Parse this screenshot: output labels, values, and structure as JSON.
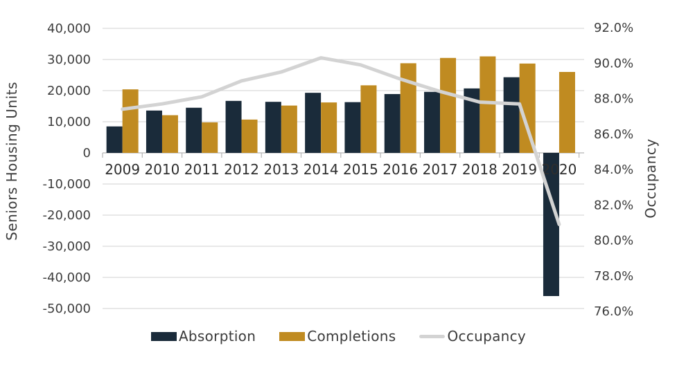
{
  "colors": {
    "absorption": "#1a2b3a",
    "completions": "#c08b21",
    "occupancy_line": "#d3d3d3",
    "gridline": "#d9d9d9",
    "axis_line": "#b5b5b5",
    "tick_text": "#3d3d3d",
    "year_text": "#2e2e2e",
    "background": "#ffffff"
  },
  "left_axis": {
    "title": "Seniors Housing Units",
    "tick_labels": [
      "40,000",
      "30,000",
      "20,000",
      "10,000",
      "0",
      "-10,000",
      "-20,000",
      "-30,000",
      "-40,000",
      "-50,000"
    ]
  },
  "right_axis": {
    "title": "Occupancy",
    "tick_labels": [
      "92.0%",
      "90.0%",
      "88.0%",
      "86.0%",
      "84.0%",
      "82.0%",
      "80.0%",
      "78.0%",
      "76.0%"
    ]
  },
  "legend": {
    "items": [
      {
        "label": "Absorption",
        "swatch": "rect",
        "color": "#1a2b3a"
      },
      {
        "label": "Completions",
        "swatch": "rect",
        "color": "#c08b21"
      },
      {
        "label": "Occupancy",
        "swatch": "line",
        "color": "#d3d3d3"
      }
    ]
  },
  "chart_data": {
    "type": "bar+line combo",
    "categories": [
      "2009",
      "2010",
      "2011",
      "2012",
      "2013",
      "2014",
      "2015",
      "2016",
      "2017",
      "2018",
      "2019",
      "2020"
    ],
    "series": [
      {
        "name": "Absorption",
        "type": "bar",
        "axis": "left",
        "color": "#1a2b3a",
        "values": [
          8500,
          13600,
          14500,
          16700,
          16400,
          19300,
          16300,
          18900,
          19600,
          20700,
          24300,
          -46000
        ]
      },
      {
        "name": "Completions",
        "type": "bar",
        "axis": "left",
        "color": "#c08b21",
        "values": [
          20400,
          12100,
          9800,
          10700,
          15200,
          16200,
          21700,
          28800,
          30500,
          31000,
          28700,
          26000
        ]
      },
      {
        "name": "Occupancy",
        "type": "line",
        "axis": "right",
        "color": "#d3d3d3",
        "values": [
          87.4,
          87.7,
          88.1,
          89.0,
          89.5,
          90.3,
          89.9,
          89.1,
          88.4,
          87.8,
          87.7,
          80.9
        ]
      }
    ],
    "left_ylabel": "Seniors Housing Units",
    "right_ylabel": "Occupancy",
    "left_ylim": [
      -50000,
      40000
    ],
    "left_step": 10000,
    "right_ylim": [
      76,
      92
    ],
    "right_step": 2,
    "grid": true,
    "legend_position": "bottom",
    "title": ""
  }
}
